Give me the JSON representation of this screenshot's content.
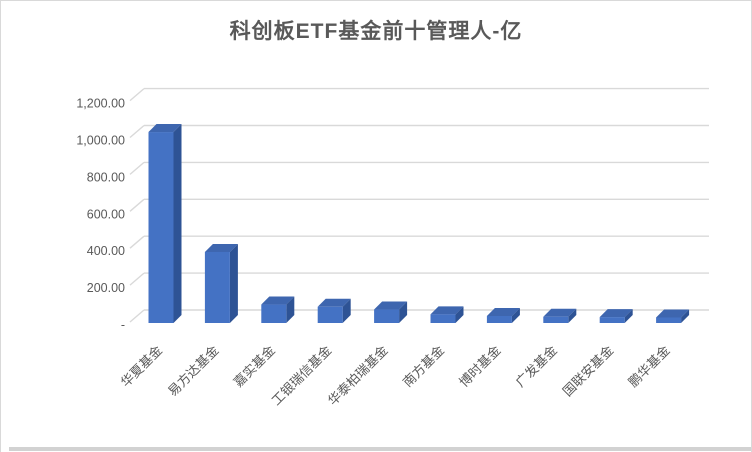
{
  "page": {
    "background": "#FFFFFF",
    "border_color": "#D9D9D9",
    "divider_color": "#D2D2D2"
  },
  "chart_data": {
    "type": "bar",
    "subtype": "3d-column",
    "title": "科创板ETF基金前十管理人-亿",
    "unit": "亿",
    "categories": [
      "华夏基金",
      "易方达基金",
      "嘉实基金",
      "工银瑞信基金",
      "华泰柏瑞基金",
      "南方基金",
      "博时基金",
      "广发基金",
      "国联安基金",
      "鹏华基金"
    ],
    "values": [
      1035,
      385,
      100,
      88,
      73,
      47,
      38,
      34,
      32,
      30
    ],
    "xlabel": "",
    "ylabel": "",
    "ylim": [
      0,
      1200
    ],
    "ytick_interval": 200,
    "ytick_labels": [
      "-",
      "200.00",
      "400.00",
      "600.00",
      "800.00",
      "1,000.00",
      "1,200.00"
    ],
    "number_format": "#,##0.00",
    "grid": true,
    "legend_position": "none",
    "x_label_rotation_deg": -45,
    "colors": {
      "bar_front": "#4472C4",
      "bar_top": "#3E66AF",
      "bar_side": "#2E5395",
      "gridline": "#D9D9D9",
      "axis_text": "#595959",
      "title_text": "#595959"
    }
  }
}
